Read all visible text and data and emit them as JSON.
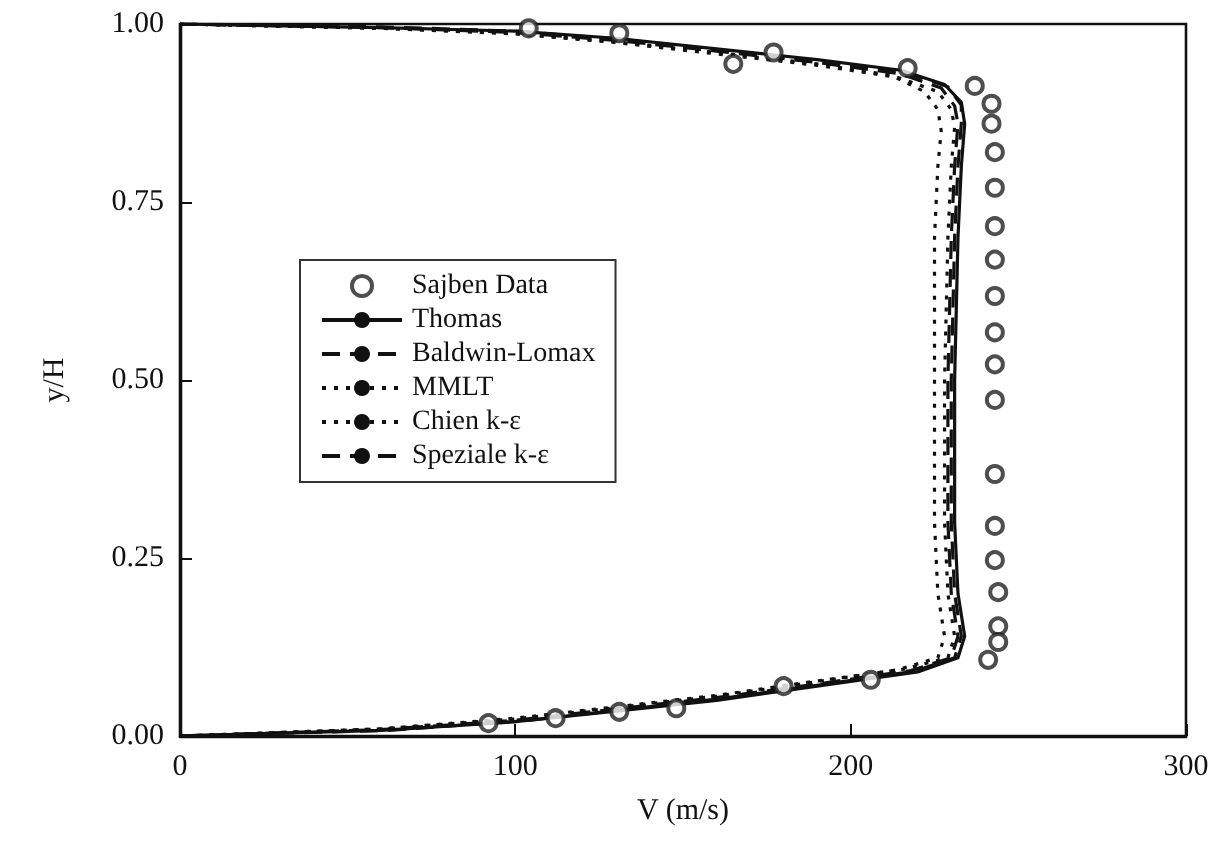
{
  "chart_data": {
    "type": "line",
    "xlabel": "V (m/s)",
    "ylabel": "y/H",
    "xlim": [
      0,
      300
    ],
    "xticks": [
      0,
      100,
      200,
      300
    ],
    "ylim": [
      0,
      1
    ],
    "yticks": [
      {
        "value": 0,
        "label": "0.00"
      },
      {
        "value": 0.25,
        "label": "0.25"
      },
      {
        "value": 0.5,
        "label": "0.50"
      },
      {
        "value": 0.75,
        "label": "0.75"
      },
      {
        "value": 1,
        "label": "1.00"
      }
    ],
    "grid": false,
    "legend": "left",
    "series": [
      {
        "name": "Sajben Data",
        "type": "scatter",
        "marker": "circle",
        "color": "#222222",
        "x": [
          104,
          131,
          165,
          177,
          217,
          237,
          242,
          242,
          243,
          243,
          243,
          243,
          243,
          243,
          243,
          243,
          243,
          243,
          243,
          244,
          244,
          244,
          241,
          92,
          112,
          131,
          148,
          180,
          206
        ],
        "values": [
          0.994,
          0.987,
          0.944,
          0.96,
          0.938,
          0.913,
          0.888,
          0.86,
          0.82,
          0.77,
          0.716,
          0.669,
          0.618,
          0.567,
          0.522,
          0.472,
          0.368,
          0.295,
          0.247,
          0.202,
          0.154,
          0.132,
          0.107,
          0.018,
          0.025,
          0.034,
          0.039,
          0.07,
          0.079
        ]
      },
      {
        "name": "Thomas",
        "line_style": "solid",
        "color": "#111111",
        "x": [
          0,
          60,
          100,
          130,
          160,
          190,
          215,
          228,
          233,
          234,
          233,
          232,
          231,
          231,
          232,
          234,
          232,
          220,
          190,
          160,
          130,
          100,
          60,
          0
        ],
        "values": [
          1.0,
          0.995,
          0.99,
          0.98,
          0.965,
          0.95,
          0.935,
          0.915,
          0.89,
          0.86,
          0.8,
          0.7,
          0.5,
          0.3,
          0.2,
          0.14,
          0.11,
          0.09,
          0.07,
          0.05,
          0.035,
          0.02,
          0.008,
          0
        ]
      },
      {
        "name": "Baldwin-Lomax",
        "line_style": "dashed",
        "color": "#111111",
        "x": [
          0,
          60,
          100,
          130,
          160,
          190,
          215,
          227,
          231,
          232,
          231,
          230,
          229,
          229,
          230,
          232,
          230,
          218,
          190,
          160,
          130,
          100,
          60,
          0
        ],
        "values": [
          1.0,
          0.995,
          0.988,
          0.977,
          0.962,
          0.946,
          0.93,
          0.91,
          0.885,
          0.86,
          0.8,
          0.7,
          0.5,
          0.3,
          0.2,
          0.14,
          0.11,
          0.092,
          0.073,
          0.054,
          0.038,
          0.022,
          0.009,
          0
        ]
      },
      {
        "name": "MMLT",
        "line_style": "dotted",
        "color": "#111111",
        "x": [
          0,
          60,
          100,
          130,
          160,
          190,
          212,
          222,
          226,
          227,
          226,
          225,
          225,
          225,
          226,
          228,
          226,
          214,
          188,
          160,
          130,
          100,
          60,
          0
        ],
        "values": [
          1.0,
          0.994,
          0.987,
          0.975,
          0.96,
          0.944,
          0.928,
          0.905,
          0.88,
          0.85,
          0.8,
          0.7,
          0.5,
          0.3,
          0.2,
          0.14,
          0.11,
          0.093,
          0.075,
          0.056,
          0.04,
          0.024,
          0.01,
          0
        ]
      },
      {
        "name": "Chien k-ε",
        "line_style": "dotted",
        "color": "#111111",
        "x": [
          0,
          60,
          100,
          130,
          160,
          190,
          214,
          226,
          230,
          231,
          230,
          229,
          228,
          228,
          229,
          231,
          229,
          216,
          188,
          160,
          130,
          100,
          60,
          0
        ],
        "values": [
          1.0,
          0.994,
          0.986,
          0.974,
          0.958,
          0.942,
          0.925,
          0.905,
          0.88,
          0.855,
          0.8,
          0.7,
          0.5,
          0.3,
          0.2,
          0.14,
          0.11,
          0.094,
          0.076,
          0.057,
          0.041,
          0.025,
          0.01,
          0
        ]
      },
      {
        "name": "Speziale k-ε",
        "line_style": "dashed",
        "color": "#111111",
        "x": [
          0,
          60,
          100,
          130,
          160,
          190,
          216,
          229,
          233,
          233,
          232,
          231,
          230,
          230,
          231,
          233,
          231,
          219,
          191,
          162,
          132,
          102,
          62,
          0
        ],
        "values": [
          1.0,
          0.996,
          0.99,
          0.979,
          0.964,
          0.948,
          0.932,
          0.912,
          0.886,
          0.86,
          0.8,
          0.7,
          0.5,
          0.3,
          0.2,
          0.14,
          0.11,
          0.091,
          0.072,
          0.053,
          0.037,
          0.021,
          0.008,
          0
        ]
      }
    ]
  }
}
